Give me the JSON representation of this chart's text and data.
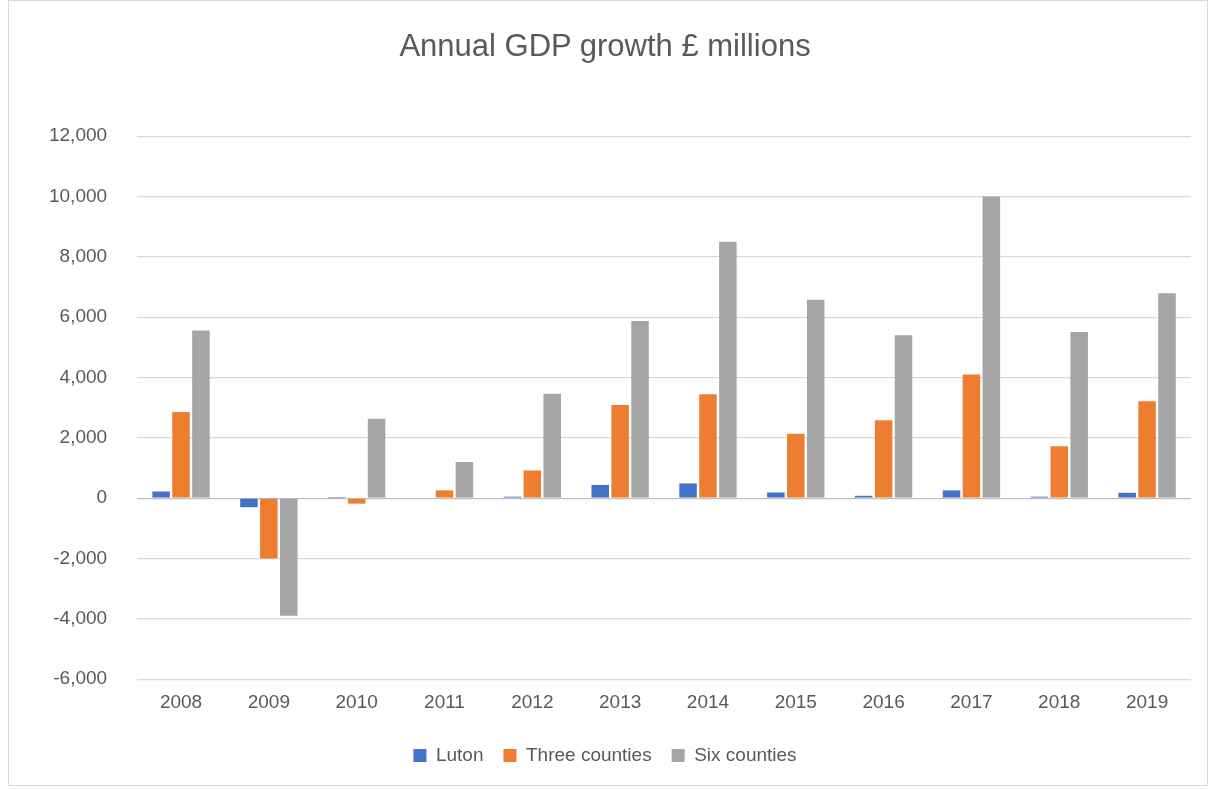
{
  "chart_data": {
    "type": "bar",
    "title": "Annual GDP growth £ millions",
    "categories": [
      "2008",
      "2009",
      "2010",
      "2011",
      "2012",
      "2013",
      "2014",
      "2015",
      "2016",
      "2017",
      "2018",
      "2019"
    ],
    "series": [
      {
        "name": "Luton",
        "color": "#4472c4",
        "values": [
          220,
          -300,
          40,
          0,
          50,
          440,
          490,
          190,
          80,
          260,
          50,
          180
        ]
      },
      {
        "name": "Three counties",
        "color": "#ed7d31",
        "values": [
          2860,
          -2000,
          -180,
          260,
          920,
          3090,
          3450,
          2140,
          2580,
          4100,
          1720,
          3210
        ]
      },
      {
        "name": "Six counties",
        "color": "#a5a5a5",
        "values": [
          5560,
          -3900,
          2630,
          1200,
          3460,
          5870,
          8500,
          6580,
          5400,
          10000,
          5510,
          6790
        ]
      }
    ],
    "ylim": [
      -6000,
      12000
    ],
    "yticks": [
      {
        "value": -6000,
        "label": "-6,000"
      },
      {
        "value": -4000,
        "label": "-4,000"
      },
      {
        "value": -2000,
        "label": "-2,000"
      },
      0,
      {
        "value": 2000,
        "label": "2,000"
      },
      {
        "value": 4000,
        "label": "4,000"
      },
      {
        "value": 6000,
        "label": "6,000"
      },
      {
        "value": 8000,
        "label": "8,000"
      },
      {
        "value": 10000,
        "label": "10,000"
      },
      {
        "value": 12000,
        "label": "12,000"
      }
    ],
    "grid": "y",
    "legend": "bottom"
  }
}
